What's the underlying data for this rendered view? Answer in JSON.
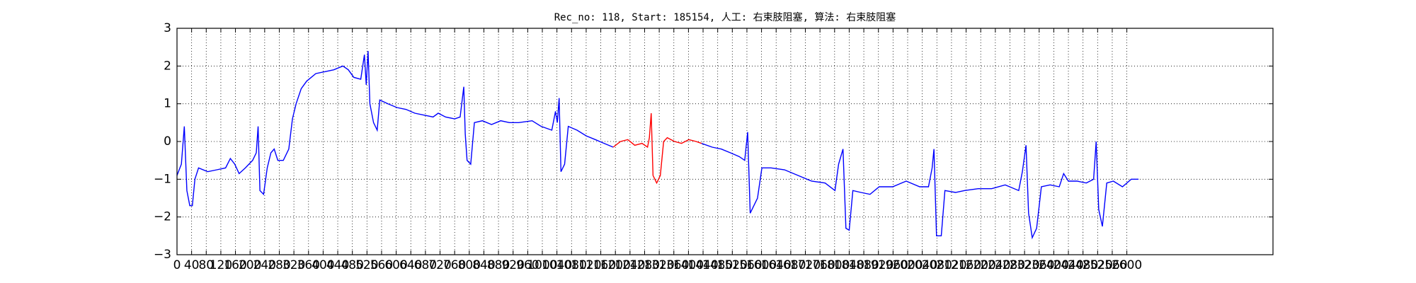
{
  "chart_data": {
    "type": "line",
    "title": "Rec_no: 118, Start: 185154, 人工: 右束肢阻塞, 算法: 右束肢阻塞",
    "xlim": [
      0,
      3000
    ],
    "ylim": [
      -3,
      3
    ],
    "xticks": [
      0,
      40,
      80,
      120,
      160,
      200,
      240,
      280,
      320,
      360,
      400,
      440,
      480,
      520,
      560,
      600,
      640,
      680,
      720,
      760,
      800,
      840,
      880,
      920,
      960,
      1000,
      1040,
      1080,
      1120,
      1160,
      1200,
      1240,
      1280,
      1320,
      1360,
      1400,
      1440,
      1480,
      1520,
      1560,
      1600,
      1640,
      1680,
      1720,
      1760,
      1800,
      1840,
      1880,
      1920,
      1960,
      2000,
      2040,
      2080,
      2120,
      2160,
      2200,
      2240,
      2280,
      2320,
      2360,
      2400,
      2440,
      2480,
      2520,
      2560,
      2600
    ],
    "yticks": [
      {
        "value": -3,
        "label": "−3"
      },
      {
        "value": -2,
        "label": "−2"
      },
      {
        "value": -1,
        "label": "−1"
      },
      0,
      1,
      2,
      3
    ],
    "grid": true,
    "series": [
      {
        "color": "#0000ff",
        "x": [
          0,
          12,
          20,
          27,
          35,
          42,
          49,
          59,
          84,
          109,
          133,
          146,
          158,
          170,
          187,
          207,
          217,
          222,
          227,
          237,
          247,
          257,
          266,
          276,
          291,
          306,
          316,
          326,
          340,
          355,
          380,
          405,
          429,
          454,
          469,
          484,
          503,
          513,
          518,
          523,
          528,
          538,
          548,
          555,
          577,
          602,
          627,
          651,
          676,
          701,
          715,
          735,
          760,
          775,
          785,
          789,
          794,
          804,
          814,
          836,
          861,
          886,
          910,
          935,
          972,
          997,
          1026,
          1036,
          1041,
          1046,
          1051,
          1061,
          1071,
          1095,
          1120,
          1145,
          1169,
          1194
        ],
        "values": [
          -0.9,
          -0.6,
          0.4,
          -1.3,
          -1.7,
          -1.7,
          -1.0,
          -0.7,
          -0.8,
          -0.75,
          -0.7,
          -0.45,
          -0.6,
          -0.85,
          -0.7,
          -0.5,
          -0.3,
          0.4,
          -1.3,
          -1.4,
          -0.7,
          -0.3,
          -0.2,
          -0.5,
          -0.5,
          -0.2,
          0.6,
          1.0,
          1.4,
          1.6,
          1.8,
          1.85,
          1.9,
          2.0,
          1.9,
          1.7,
          1.65,
          2.3,
          1.5,
          2.4,
          1.0,
          0.5,
          0.3,
          1.1,
          1.0,
          0.9,
          0.85,
          0.75,
          0.7,
          0.65,
          0.75,
          0.65,
          0.6,
          0.65,
          1.45,
          0.2,
          -0.5,
          -0.6,
          0.5,
          0.55,
          0.45,
          0.55,
          0.5,
          0.5,
          0.55,
          0.4,
          0.3,
          0.8,
          0.5,
          1.15,
          -0.8,
          -0.6,
          0.4,
          0.3,
          0.15,
          0.05,
          -0.05,
          -0.15
        ]
      },
      {
        "color": "#ff0000",
        "x": [
          1194,
          1214,
          1234,
          1253,
          1273,
          1288,
          1293,
          1298,
          1303,
          1313,
          1323,
          1332,
          1342,
          1362,
          1381,
          1401,
          1421,
          1436
        ],
        "values": [
          -0.15,
          0.0,
          0.05,
          -0.1,
          -0.05,
          -0.15,
          0.1,
          0.75,
          -0.9,
          -1.1,
          -0.9,
          0.0,
          0.1,
          0.0,
          -0.05,
          0.05,
          0.0,
          -0.05
        ]
      },
      {
        "color": "#0000ff",
        "x": [
          1436,
          1465,
          1490,
          1515,
          1539,
          1554,
          1562,
          1569,
          1579,
          1589,
          1601,
          1626,
          1663,
          1700,
          1737,
          1774,
          1801,
          1811,
          1823,
          1831,
          1840,
          1850,
          1872,
          1897,
          1922,
          1959,
          1996,
          2033,
          2057,
          2067,
          2072,
          2079,
          2092,
          2102,
          2131,
          2156,
          2193,
          2230,
          2267,
          2304,
          2314,
          2324,
          2331,
          2341,
          2353,
          2366,
          2390,
          2415,
          2427,
          2440,
          2464,
          2489,
          2509,
          2516,
          2523,
          2533,
          2545,
          2563,
          2588,
          2612,
          2632
        ],
        "values": [
          -0.05,
          -0.15,
          -0.2,
          -0.3,
          -0.4,
          -0.5,
          0.25,
          -1.9,
          -1.7,
          -1.5,
          -0.7,
          -0.7,
          -0.75,
          -0.9,
          -1.05,
          -1.1,
          -1.3,
          -0.6,
          -0.2,
          -2.3,
          -2.35,
          -1.3,
          -1.35,
          -1.4,
          -1.2,
          -1.2,
          -1.05,
          -1.2,
          -1.2,
          -0.7,
          -0.2,
          -2.5,
          -2.5,
          -1.3,
          -1.35,
          -1.3,
          -1.25,
          -1.25,
          -1.15,
          -1.3,
          -0.8,
          -0.1,
          -1.9,
          -2.55,
          -2.3,
          -1.2,
          -1.15,
          -1.2,
          -0.85,
          -1.05,
          -1.05,
          -1.1,
          -1.0,
          0.0,
          -1.8,
          -2.25,
          -1.1,
          -1.05,
          -1.2,
          -1.0,
          -1.0
        ]
      }
    ]
  }
}
